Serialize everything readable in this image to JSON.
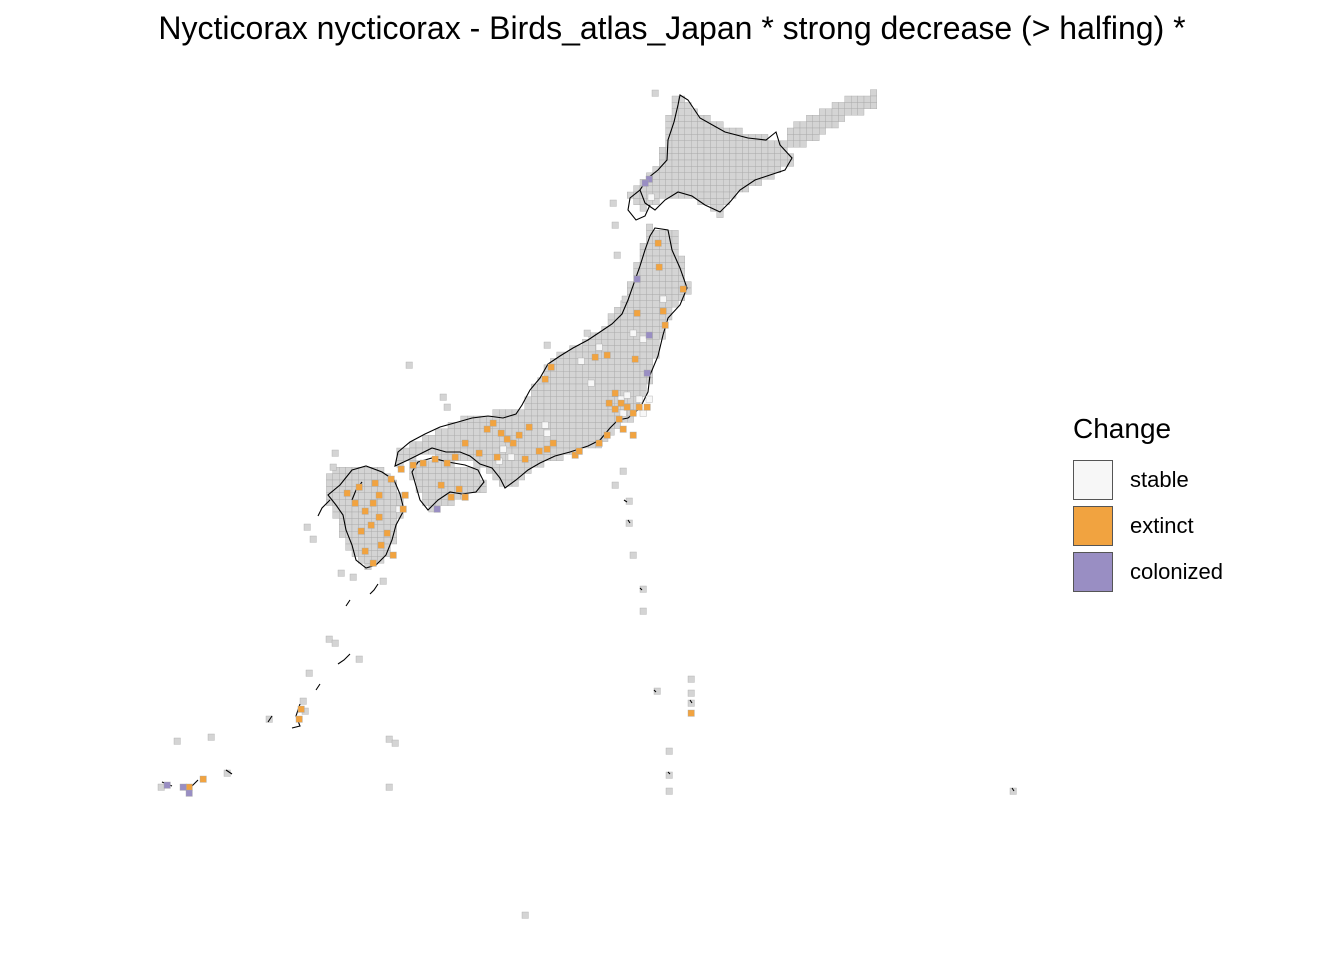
{
  "title": "Nycticorax nycticorax - Birds_atlas_Japan * strong decrease (> halfing) *",
  "legend": {
    "title": "Change",
    "items": [
      {
        "key": "stable",
        "label": "stable",
        "color": "#f7f7f7"
      },
      {
        "key": "extinct",
        "label": "extinct",
        "color": "#f1a340"
      },
      {
        "key": "colonized",
        "label": "colonized",
        "color": "#998ec3"
      }
    ]
  },
  "colors": {
    "grid_background": "#d4d4d4",
    "grid_line": "#a8a8a8",
    "coastline": "#000000"
  }
}
